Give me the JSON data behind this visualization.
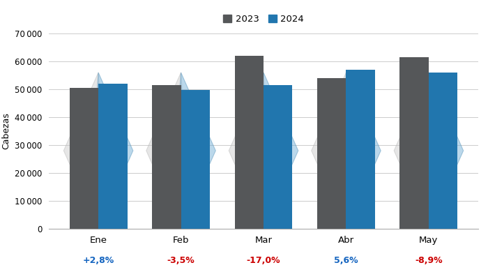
{
  "months": [
    "Ene",
    "Feb",
    "Mar",
    "Abr",
    "May"
  ],
  "values_2023": [
    50500,
    51500,
    62000,
    54000,
    61500
  ],
  "values_2024": [
    51914,
    49678,
    51540,
    57024,
    56033
  ],
  "pct_labels": [
    "+2,8%",
    "-3,5%",
    "-17,0%",
    "5,6%",
    "-8,9%"
  ],
  "pct_colors": [
    "#1565C0",
    "#cc0000",
    "#cc0000",
    "#1565C0",
    "#cc0000"
  ],
  "bar_color_2023": "#555759",
  "bar_color_2024": "#2176AE",
  "ylabel": "Cabezas",
  "ylim": [
    0,
    70000
  ],
  "yticks": [
    0,
    10000,
    20000,
    30000,
    40000,
    50000,
    60000,
    70000
  ],
  "legend_labels": [
    "2023",
    "2024"
  ],
  "bg_color": "#ffffff",
  "grid_color": "#cccccc",
  "wm_gray_fill": "#c8c8c8",
  "wm_blue_fill": "#6aaad4",
  "wm_gray_edge": "#b8b8b8",
  "wm_blue_edge": "#5090b8"
}
